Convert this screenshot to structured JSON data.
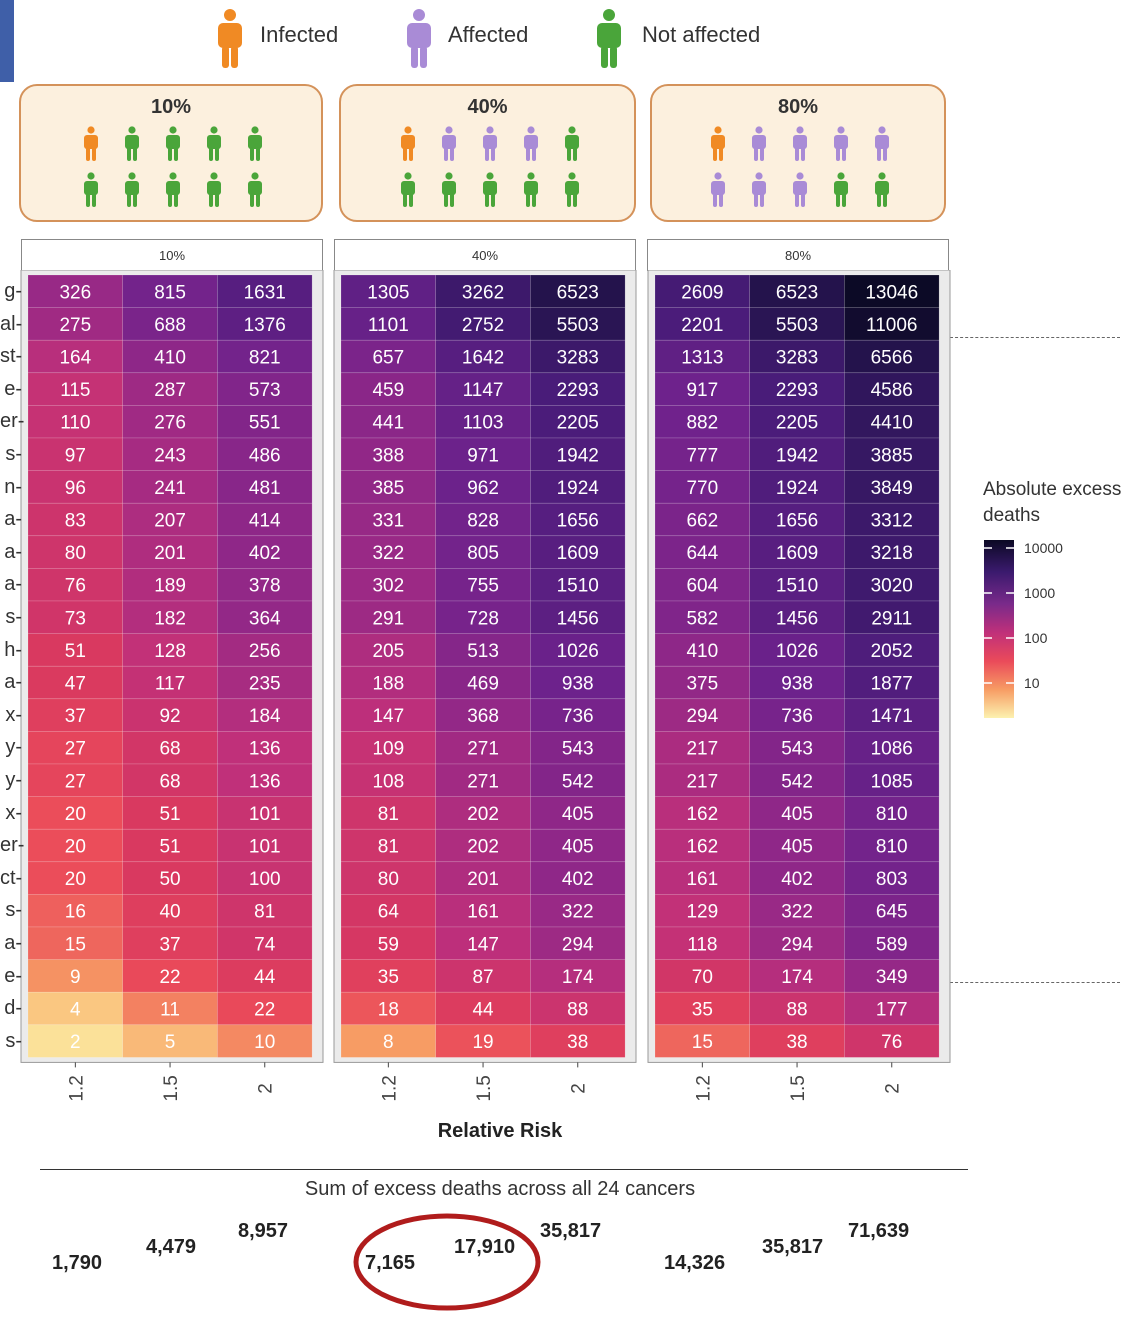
{
  "legend": {
    "items": [
      {
        "label": "Infected",
        "color": "#f08a24"
      },
      {
        "label": "Affected",
        "color": "#a98bd6"
      },
      {
        "label": "Not affected",
        "color": "#4aa53a"
      }
    ]
  },
  "groups": [
    {
      "label": "10%",
      "people": [
        "i",
        "n",
        "n",
        "n",
        "n",
        "n",
        "n",
        "n",
        "n",
        "n"
      ]
    },
    {
      "label": "40%",
      "people": [
        "i",
        "a",
        "a",
        "a",
        "n",
        "n",
        "n",
        "n",
        "n",
        "n"
      ]
    },
    {
      "label": "80%",
      "people": [
        "i",
        "a",
        "a",
        "a",
        "a",
        "a",
        "a",
        "a",
        "n",
        "n"
      ]
    }
  ],
  "chart_data": {
    "type": "heatmap",
    "xlabel": "Relative Risk",
    "x_categories": [
      "1.2",
      "1.5",
      "2"
    ],
    "y_tick_labels": [
      "g",
      "al",
      "st",
      "e",
      "er",
      "s",
      "n",
      "a",
      "a",
      "a",
      "s",
      "h",
      "a",
      "x",
      "y",
      "y",
      "x",
      "er",
      "ct",
      "s",
      "a",
      "e",
      "d",
      "s"
    ],
    "facets": [
      {
        "label": "10%",
        "values": [
          [
            326,
            815,
            1631
          ],
          [
            275,
            688,
            1376
          ],
          [
            164,
            410,
            821
          ],
          [
            115,
            287,
            573
          ],
          [
            110,
            276,
            551
          ],
          [
            97,
            243,
            486
          ],
          [
            96,
            241,
            481
          ],
          [
            83,
            207,
            414
          ],
          [
            80,
            201,
            402
          ],
          [
            76,
            189,
            378
          ],
          [
            73,
            182,
            364
          ],
          [
            51,
            128,
            256
          ],
          [
            47,
            117,
            235
          ],
          [
            37,
            92,
            184
          ],
          [
            27,
            68,
            136
          ],
          [
            27,
            68,
            136
          ],
          [
            20,
            51,
            101
          ],
          [
            20,
            51,
            101
          ],
          [
            20,
            50,
            100
          ],
          [
            16,
            40,
            81
          ],
          [
            15,
            37,
            74
          ],
          [
            9,
            22,
            44
          ],
          [
            4,
            11,
            22
          ],
          [
            2,
            5,
            10
          ]
        ]
      },
      {
        "label": "40%",
        "values": [
          [
            1305,
            3262,
            6523
          ],
          [
            1101,
            2752,
            5503
          ],
          [
            657,
            1642,
            3283
          ],
          [
            459,
            1147,
            2293
          ],
          [
            441,
            1103,
            2205
          ],
          [
            388,
            971,
            1942
          ],
          [
            385,
            962,
            1924
          ],
          [
            331,
            828,
            1656
          ],
          [
            322,
            805,
            1609
          ],
          [
            302,
            755,
            1510
          ],
          [
            291,
            728,
            1456
          ],
          [
            205,
            513,
            1026
          ],
          [
            188,
            469,
            938
          ],
          [
            147,
            368,
            736
          ],
          [
            109,
            271,
            543
          ],
          [
            108,
            271,
            542
          ],
          [
            81,
            202,
            405
          ],
          [
            81,
            202,
            405
          ],
          [
            80,
            201,
            402
          ],
          [
            64,
            161,
            322
          ],
          [
            59,
            147,
            294
          ],
          [
            35,
            87,
            174
          ],
          [
            18,
            44,
            88
          ],
          [
            8,
            19,
            38
          ]
        ]
      },
      {
        "label": "80%",
        "values": [
          [
            2609,
            6523,
            13046
          ],
          [
            2201,
            5503,
            11006
          ],
          [
            1313,
            3283,
            6566
          ],
          [
            917,
            2293,
            4586
          ],
          [
            882,
            2205,
            4410
          ],
          [
            777,
            1942,
            3885
          ],
          [
            770,
            1924,
            3849
          ],
          [
            662,
            1656,
            3312
          ],
          [
            644,
            1609,
            3218
          ],
          [
            604,
            1510,
            3020
          ],
          [
            582,
            1456,
            2911
          ],
          [
            410,
            1026,
            2052
          ],
          [
            375,
            938,
            1877
          ],
          [
            294,
            736,
            1471
          ],
          [
            217,
            543,
            1086
          ],
          [
            217,
            542,
            1085
          ],
          [
            162,
            405,
            810
          ],
          [
            162,
            405,
            810
          ],
          [
            161,
            402,
            803
          ],
          [
            129,
            322,
            645
          ],
          [
            118,
            294,
            589
          ],
          [
            70,
            174,
            349
          ],
          [
            35,
            88,
            177
          ],
          [
            15,
            38,
            76
          ]
        ]
      }
    ],
    "color_scale": {
      "type": "log",
      "palette": "magma-like",
      "range": [
        1,
        13046
      ]
    },
    "colorbar": {
      "title": "Absolute excess deaths",
      "ticks": [
        "10000",
        "1000",
        "100",
        "10"
      ]
    },
    "sums": {
      "title": "Sum  of excess deaths across all 24 cancers",
      "values": [
        "1,790",
        "4,479",
        "8,957",
        "7,165",
        "17,910",
        "35,817",
        "14,326",
        "35,817",
        "71,639"
      ],
      "highlighted_group": "40%"
    }
  },
  "annotation_color": "#b01c1c"
}
